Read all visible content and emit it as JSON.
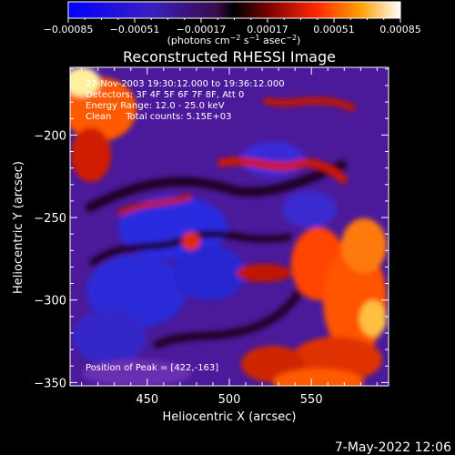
{
  "chart_data": {
    "type": "heatmap",
    "title": "Reconstructed RHESSI Image",
    "xlabel": "Heliocentric X (arcsec)",
    "ylabel": "Heliocentric Y (arcsec)",
    "xlim": [
      403,
      597
    ],
    "ylim": [
      -352,
      -159
    ],
    "xticks": [
      450,
      500,
      550
    ],
    "yticks": [
      -200,
      -250,
      -300,
      -350
    ],
    "colorbar": {
      "unit_label_parts": {
        "pre": "(photons cm",
        "e1": "−2",
        "mid1": " s",
        "e2": "−1",
        "mid2": " asec",
        "e3": "−2",
        "post": ")"
      },
      "ticks": [
        "−0.00085",
        "−0.00051",
        "−0.00017",
        "0.00017",
        "0.00051",
        "0.00085"
      ],
      "min": -0.00085,
      "max": 0.00085
    },
    "annotations": {
      "time": "27-Nov-2003 19:30:12.000 to 19:36:12.000",
      "detectors": "Detectors: 3F 4F 5F 6F 7F 8F, Att 0",
      "energy": "Energy Range: 12.0 - 25.0 keV",
      "clean": "Clean     Total counts: 5.15E+03",
      "peak": "Position of Peak = [422,-163]"
    },
    "peak_position": [
      422,
      -163
    ]
  },
  "footer": {
    "date": "7-May-2022 12:06"
  }
}
